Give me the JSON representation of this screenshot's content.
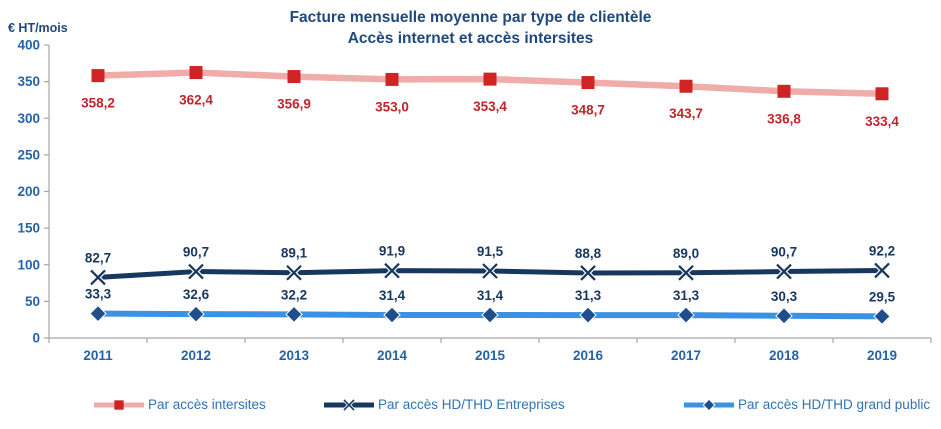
{
  "chart_data": {
    "type": "line",
    "title": "Facture mensuelle moyenne par type de clientèle",
    "subtitle": "Accès internet et accès intersites",
    "ylabel": "€ HT/mois",
    "ylim": [
      0,
      400
    ],
    "y_ticks": [
      0,
      50,
      100,
      150,
      200,
      250,
      300,
      350,
      400
    ],
    "grid": false,
    "legend_position": "bottom",
    "categories": [
      "2011",
      "2012",
      "2013",
      "2014",
      "2015",
      "2016",
      "2017",
      "2018",
      "2019"
    ],
    "series": [
      {
        "name": "Par accès intersites",
        "marker": "square",
        "label_position": "below",
        "line_color": "#F0ACA9",
        "marker_color": "#CE2424",
        "label_color": "#C2242B",
        "line_width": 6.5,
        "values": [
          358.2,
          362.4,
          356.9,
          353.0,
          353.4,
          348.7,
          343.7,
          336.8,
          333.4
        ],
        "labels": [
          "358,2",
          "362,4",
          "356,9",
          "353,0",
          "353,4",
          "348,7",
          "343,7",
          "336,8",
          "333,4"
        ]
      },
      {
        "name": "Par accès HD/THD Entreprises",
        "marker": "x",
        "label_position": "above",
        "line_color": "#17375E",
        "marker_color": "#17375E",
        "label_color": "#17375E",
        "line_width": 5,
        "values": [
          82.7,
          90.7,
          89.1,
          91.9,
          91.5,
          88.8,
          89.0,
          90.7,
          92.2
        ],
        "labels": [
          "82,7",
          "90,7",
          "89,1",
          "91,9",
          "91,5",
          "88,8",
          "89,0",
          "90,7",
          "92,2"
        ]
      },
      {
        "name": "Par accès HD/THD grand public",
        "marker": "diamond",
        "label_position": "above",
        "line_color": "#3B92E4",
        "marker_color": "#1F4E8C",
        "label_color": "#17375E",
        "line_width": 6,
        "values": [
          33.3,
          32.6,
          32.2,
          31.4,
          31.4,
          31.3,
          31.3,
          30.3,
          29.5
        ],
        "labels": [
          "33,3",
          "32,6",
          "32,2",
          "31,4",
          "31,4",
          "31,3",
          "31,3",
          "30,3",
          "29,5"
        ]
      }
    ],
    "colors": {
      "title": "#1F497D",
      "axis_line": "#A6A6A6",
      "tick_labels": "#2563A8",
      "legend_text": "#2E74B5"
    }
  }
}
